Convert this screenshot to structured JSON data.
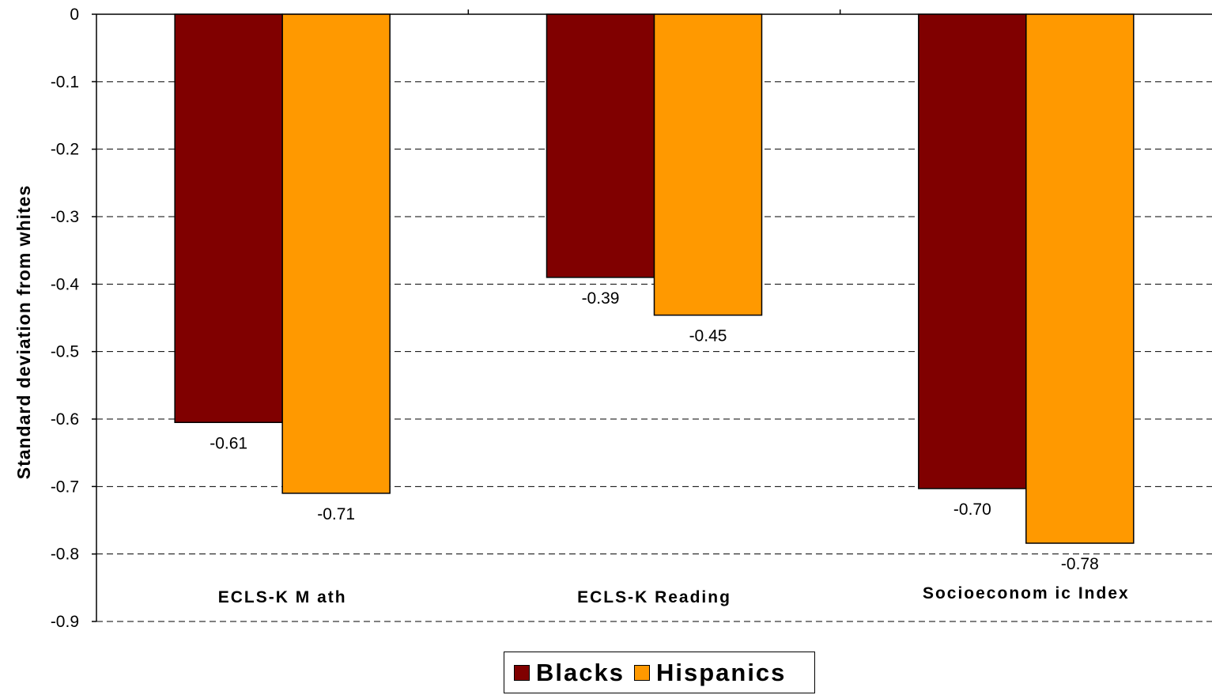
{
  "chart_data": {
    "type": "bar",
    "categories": [
      "ECLS-K M ath",
      "ECLS-K  Reading",
      "Socioeconom ic Index"
    ],
    "series": [
      {
        "name": "Blacks",
        "color": "#800000",
        "values": [
          -0.605,
          -0.39,
          -0.703
        ],
        "labels": [
          "-0.61",
          "-0.39",
          "-0.70"
        ]
      },
      {
        "name": "Hispanics",
        "color": "#FF9900",
        "values": [
          -0.71,
          -0.446,
          -0.784
        ],
        "labels": [
          "-0.71",
          "-0.45",
          "-0.78"
        ]
      }
    ],
    "ylabel": "Standard deviation from whites",
    "ylim": [
      -0.9,
      0
    ],
    "yticks": [
      "0",
      "-0.1",
      "-0.2",
      "-0.3",
      "-0.4",
      "-0.5",
      "-0.6",
      "-0.7",
      "-0.8",
      "-0.9"
    ],
    "grid": "dashed horizontal",
    "legend_position": "bottom"
  }
}
